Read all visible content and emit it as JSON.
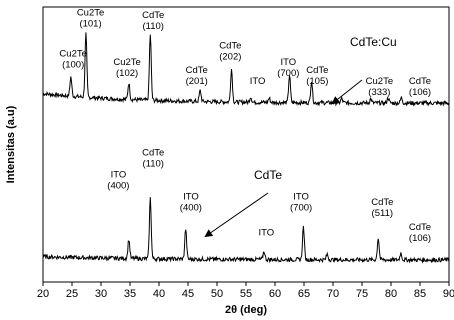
{
  "chart_data": {
    "type": "line",
    "title": "",
    "xlabel": "2θ (deg)",
    "ylabel": "Intensitas (a.u)",
    "xlim": [
      20,
      90
    ],
    "xticks": [
      20,
      25,
      30,
      35,
      40,
      45,
      50,
      55,
      60,
      65,
      70,
      75,
      80,
      85,
      90
    ],
    "ylim": [
      0,
      100
    ],
    "grid": false,
    "legend": "none",
    "line_color": "#000000",
    "series": [
      {
        "name": "CdTe:Cu",
        "baseline": 65,
        "peaks": [
          {
            "x": 24.8,
            "y": 7
          },
          {
            "x": 27.4,
            "y": 23
          },
          {
            "x": 34.8,
            "y": 6
          },
          {
            "x": 38.5,
            "y": 24
          },
          {
            "x": 47.1,
            "y": 4
          },
          {
            "x": 52.5,
            "y": 12
          },
          {
            "x": 55.8,
            "y": 2
          },
          {
            "x": 59.0,
            "y": 1.5
          },
          {
            "x": 62.5,
            "y": 10
          },
          {
            "x": 66.3,
            "y": 8
          },
          {
            "x": 71.5,
            "y": 1.5
          },
          {
            "x": 76.5,
            "y": 1.5
          },
          {
            "x": 79.5,
            "y": 2
          },
          {
            "x": 81.8,
            "y": 2
          }
        ],
        "label_text": "CdTe:Cu",
        "annotations": [
          {
            "line1": "Cu2Te",
            "line2": "(100)",
            "x": 25.2,
            "y": 82
          },
          {
            "line1": "Cu2Te",
            "line2": "(101)",
            "x": 28.2,
            "y": 97
          },
          {
            "line1": "Cu2Te",
            "line2": "(102)",
            "x": 34.5,
            "y": 79
          },
          {
            "line1": "CdTe",
            "line2": "(110)",
            "x": 39.0,
            "y": 96
          },
          {
            "line1": "CdTe",
            "line2": "(201)",
            "x": 46.5,
            "y": 76
          },
          {
            "line1": "CdTe",
            "line2": "(202)",
            "x": 52.3,
            "y": 85
          },
          {
            "line1": "ITO",
            "line2": "",
            "x": 57.0,
            "y": 72
          },
          {
            "line1": "ITO",
            "line2": "(700)",
            "x": 62.3,
            "y": 79
          },
          {
            "line1": "CdTe",
            "line2": "(105)",
            "x": 67.3,
            "y": 76
          },
          {
            "line1": "Cu2Te",
            "line2": "(333)",
            "x": 78.0,
            "y": 72
          },
          {
            "line1": "CdTe",
            "line2": "(106)",
            "x": 85.0,
            "y": 72
          }
        ]
      },
      {
        "name": "CdTe",
        "baseline": 8,
        "peaks": [
          {
            "x": 34.8,
            "y": 7
          },
          {
            "x": 38.5,
            "y": 22
          },
          {
            "x": 44.6,
            "y": 11
          },
          {
            "x": 58.1,
            "y": 3
          },
          {
            "x": 64.9,
            "y": 12
          },
          {
            "x": 69.0,
            "y": 2
          },
          {
            "x": 77.8,
            "y": 8
          },
          {
            "x": 81.7,
            "y": 2.5
          }
        ],
        "label_text": "CdTe",
        "annotations": [
          {
            "line1": "ITO",
            "line2": "(400)",
            "x": 33.0,
            "y": 38
          },
          {
            "line1": "CdTe",
            "line2": "(110)",
            "x": 39.0,
            "y": 46
          },
          {
            "line1": "ITO",
            "line2": "(400)",
            "x": 45.5,
            "y": 30
          },
          {
            "line1": "ITO",
            "line2": "",
            "x": 58.5,
            "y": 17
          },
          {
            "line1": "ITO",
            "line2": "(700)",
            "x": 64.5,
            "y": 30
          },
          {
            "line1": "CdTe",
            "line2": "(511)",
            "x": 78.5,
            "y": 28
          },
          {
            "line1": "CdTe",
            "line2": "(106)",
            "x": 85.0,
            "y": 19
          }
        ]
      }
    ]
  }
}
